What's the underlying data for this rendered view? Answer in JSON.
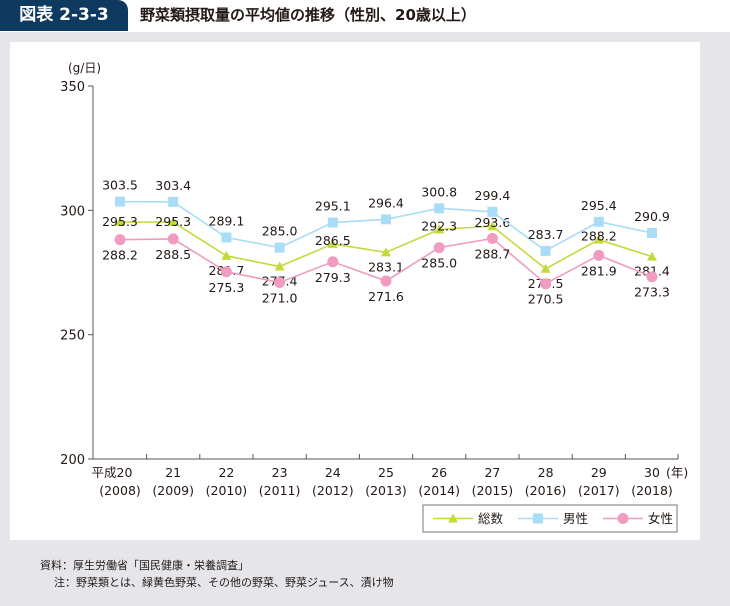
{
  "header": {
    "figure_no": "図表 2-3-3",
    "title": "野菜類摂取量の平均値の推移（性別、20歳以上）"
  },
  "chart_data": {
    "type": "line",
    "title": "野菜類摂取量の平均値の推移（性別、20歳以上）",
    "ylabel": "(g/日)",
    "xlabel": "(年)",
    "ylim": [
      200,
      350
    ],
    "yticks": [
      200,
      250,
      300,
      350
    ],
    "categories": [
      {
        "era": "平成20",
        "year": "(2008)"
      },
      {
        "era": "21",
        "year": "(2009)"
      },
      {
        "era": "22",
        "year": "(2010)"
      },
      {
        "era": "23",
        "year": "(2011)"
      },
      {
        "era": "24",
        "year": "(2012)"
      },
      {
        "era": "25",
        "year": "(2013)"
      },
      {
        "era": "26",
        "year": "(2014)"
      },
      {
        "era": "27",
        "year": "(2015)"
      },
      {
        "era": "28",
        "year": "(2016)"
      },
      {
        "era": "29",
        "year": "(2017)"
      },
      {
        "era": "30",
        "year": "(2018)"
      }
    ],
    "series": [
      {
        "name": "総数",
        "marker": "triangle",
        "color": "#c5da3a",
        "values": [
          295.3,
          295.3,
          281.7,
          277.4,
          286.5,
          283.1,
          292.3,
          293.6,
          276.5,
          288.2,
          281.4
        ]
      },
      {
        "name": "男性",
        "marker": "square",
        "color": "#a9dcf6",
        "values": [
          303.5,
          303.4,
          289.1,
          285.0,
          295.1,
          296.4,
          300.8,
          299.4,
          283.7,
          295.4,
          290.9
        ]
      },
      {
        "name": "女性",
        "marker": "circle",
        "color": "#f09bc0",
        "values": [
          288.2,
          288.5,
          275.3,
          271.0,
          279.3,
          271.6,
          285.0,
          288.7,
          270.5,
          281.9,
          273.3
        ]
      }
    ],
    "legend": "bottom-right",
    "grid": false
  },
  "notes": {
    "source": "資料：厚生労働省「国民健康・栄養調査」",
    "note": "注：野菜類とは、緑黄色野菜、その他の野菜、野菜ジュース、漬け物"
  }
}
